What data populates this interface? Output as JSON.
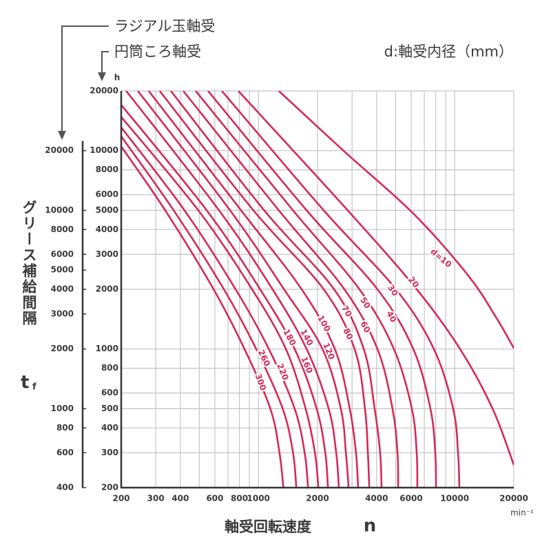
{
  "chart_data": {
    "type": "line",
    "annotations": {
      "radial": "ラジアル玉軸受",
      "roller": "円筒ころ軸受",
      "legend_title": "d:軸受内径（mm）"
    },
    "y_unit": "h",
    "ylabel": "グリース補給間隔",
    "y_symbol": "t",
    "y_symbol_sub": "f",
    "xlabel": "軸受回転速度",
    "x_symbol": "n",
    "x_unit": "min⁻¹",
    "xlog": true,
    "ylog": true,
    "grid": true,
    "xlim": [
      200,
      20000
    ],
    "ylim": [
      200,
      20000
    ],
    "xticks": [
      200,
      300,
      400,
      600,
      800,
      1000,
      2000,
      4000,
      6000,
      10000,
      20000
    ],
    "xminor": [
      500,
      700,
      900,
      3000,
      5000,
      7000,
      8000,
      9000
    ],
    "yticks": [
      20000,
      10000,
      8000,
      6000,
      5000,
      4000,
      3000,
      2000,
      1000,
      800,
      600,
      500,
      400,
      300,
      200
    ],
    "y2lim": [
      400,
      40000
    ],
    "y2ticks": [
      20000,
      10000,
      8000,
      6000,
      5000,
      4000,
      3000,
      2000,
      1000,
      800,
      600,
      400
    ],
    "color": "#d6285a",
    "series": [
      {
        "name": "d=10",
        "x": [
          1270,
          2740,
          6150,
          11700,
          16200,
          20000
        ],
        "values": [
          20000,
          9900,
          4820,
          2350,
          1450,
          1010
        ]
      },
      {
        "name": "20",
        "x": [
          790,
          2850,
          6400,
          10650,
          15600,
          20000
        ],
        "values": [
          20000,
          5000,
          2000,
          1000,
          500,
          260
        ]
      },
      {
        "name": "30",
        "x": [
          651,
          2150,
          5020,
          7830,
          9820,
          10400,
          10560
        ],
        "values": [
          20000,
          5000,
          2000,
          1000,
          500,
          300,
          200
        ]
      },
      {
        "name": "40",
        "x": [
          554,
          1760,
          4040,
          6150,
          7520,
          7960,
          8030
        ],
        "values": [
          20000,
          5000,
          2000,
          1000,
          500,
          300,
          200
        ]
      },
      {
        "name": "50",
        "x": [
          479,
          1500,
          3270,
          4900,
          6050,
          6400,
          6450
        ],
        "values": [
          20000,
          5000,
          2000,
          1000,
          500,
          300,
          200
        ]
      },
      {
        "name": "60",
        "x": [
          414,
          1270,
          2740,
          4040,
          4820,
          5110,
          5150
        ],
        "values": [
          20000,
          5000,
          2000,
          1000,
          500,
          300,
          200
        ]
      },
      {
        "name": "70",
        "x": [
          358,
          1070,
          2430,
          3440,
          3910,
          4170,
          4240
        ],
        "values": [
          20000,
          5000,
          2000,
          1000,
          500,
          300,
          200
        ]
      },
      {
        "name": "80",
        "x": [
          314,
          943,
          2150,
          3090,
          3490,
          3610,
          3670
        ],
        "values": [
          20000,
          5000,
          2000,
          1000,
          500,
          300,
          200
        ]
      },
      {
        "name": "100",
        "x": [
          276,
          816,
          1660,
          2450,
          2920,
          3140,
          3220
        ],
        "values": [
          20000,
          5000,
          2000,
          1000,
          500,
          300,
          200
        ]
      },
      {
        "name": "120",
        "x": [
          243,
          717,
          1350,
          2120,
          2630,
          2790,
          2880
        ],
        "values": [
          20000,
          5000,
          2000,
          1000,
          500,
          300,
          200
        ]
      },
      {
        "name": "140",
        "x": [
          212,
          630,
          1180,
          1760,
          2280,
          2490,
          2570
        ],
        "values": [
          20000,
          5000,
          2000,
          1000,
          500,
          300,
          200
        ]
      },
      {
        "name": "160",
        "x": [
          200,
          545,
          1020,
          1530,
          1980,
          2190,
          2260
        ],
        "values": [
          17000,
          5000,
          2000,
          1000,
          500,
          300,
          200
        ]
      },
      {
        "name": "180",
        "x": [
          200,
          494,
          928,
          1380,
          1740,
          1940,
          2020
        ],
        "values": [
          14800,
          5000,
          2000,
          1000,
          500,
          300,
          200
        ]
      },
      {
        "name": "220",
        "x": [
          200,
          420,
          765,
          1130,
          1530,
          1720,
          1790
        ],
        "values": [
          13100,
          5000,
          2000,
          1000,
          500,
          300,
          200
        ]
      },
      {
        "name": "260",
        "x": [
          200,
          370,
          667,
          974,
          1330,
          1500,
          1560
        ],
        "values": [
          11800,
          5000,
          2000,
          1000,
          500,
          300,
          200
        ]
      },
      {
        "name": "300",
        "x": [
          200,
          335,
          591,
          849,
          1150,
          1280,
          1340
        ],
        "values": [
          10500,
          5000,
          2000,
          1000,
          500,
          300,
          200
        ]
      }
    ]
  }
}
